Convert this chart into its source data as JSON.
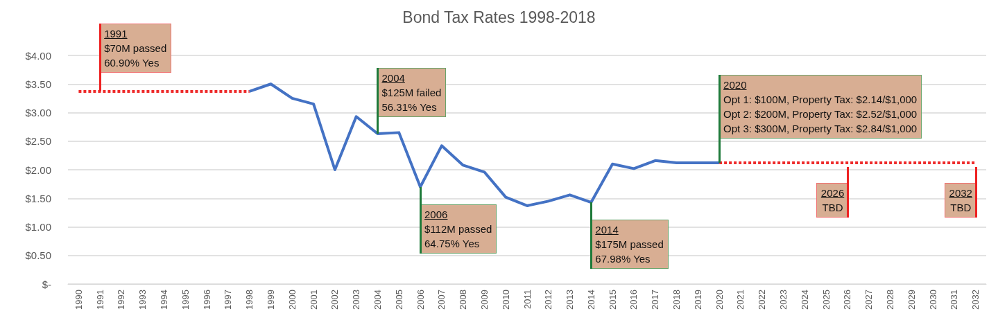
{
  "chart_data": {
    "type": "line",
    "title": "Bond Tax Rates 1998-2018",
    "categories": [
      "1990",
      "1991",
      "1992",
      "1993",
      "1994",
      "1995",
      "1996",
      "1997",
      "1998",
      "1999",
      "2000",
      "2001",
      "2002",
      "2003",
      "2004",
      "2005",
      "2006",
      "2007",
      "2008",
      "2009",
      "2010",
      "2011",
      "2012",
      "2013",
      "2014",
      "2015",
      "2016",
      "2017",
      "2018",
      "2019",
      "2020",
      "2021",
      "2022",
      "2023",
      "2024",
      "2025",
      "2026",
      "2027",
      "2028",
      "2029",
      "2030",
      "2031",
      "2032"
    ],
    "series": [
      {
        "color": "#ee2a2a",
        "line_style": "dashed",
        "values": [
          3.37,
          3.37,
          3.37,
          3.37,
          3.37,
          3.37,
          3.37,
          3.37,
          3.37,
          null,
          null,
          null,
          null,
          null,
          null,
          null,
          null,
          null,
          null,
          null,
          null,
          null,
          null,
          null,
          null,
          null,
          null,
          null,
          null,
          null,
          2.12,
          2.12,
          2.12,
          2.12,
          2.12,
          2.12,
          2.12,
          2.12,
          2.12,
          2.12,
          2.12,
          2.12,
          2.12
        ]
      },
      {
        "color": "#4472c4",
        "line_style": "solid",
        "values": [
          null,
          null,
          null,
          null,
          null,
          null,
          null,
          null,
          3.37,
          3.5,
          3.25,
          3.15,
          2.0,
          2.93,
          2.63,
          2.65,
          1.7,
          2.42,
          2.08,
          1.96,
          1.52,
          1.37,
          1.45,
          1.56,
          1.43,
          2.1,
          2.02,
          2.16,
          2.12,
          2.12,
          2.12,
          null,
          null,
          null,
          null,
          null,
          null,
          null,
          null,
          null,
          null,
          null,
          null
        ]
      }
    ],
    "ylim": [
      0,
      4
    ],
    "yticks": [
      {
        "value": 0,
        "label": "$-"
      },
      {
        "value": 0.5,
        "label": "$0.50"
      },
      {
        "value": 1,
        "label": "$1.00"
      },
      {
        "value": 1.5,
        "label": "$1.50"
      },
      {
        "value": 2,
        "label": "$2.00"
      },
      {
        "value": 2.5,
        "label": "$2.50"
      },
      {
        "value": 3,
        "label": "$3.00"
      },
      {
        "value": 3.5,
        "label": "$3.50"
      },
      {
        "value": 4,
        "label": "$4.00"
      }
    ],
    "grid": "y",
    "marker": "none",
    "annotations": [
      {
        "text": "1991\n$70M passed\n60.90% Yes",
        "x": "1991",
        "y": 3.37
      },
      {
        "text": "2004\n$125M failed\n56.31% Yes",
        "x": "2004",
        "y": 2.63
      },
      {
        "text": "2006\n$112M passed\n64.75% Yes",
        "x": "2006",
        "y": 1.7
      },
      {
        "text": "2014\n$175M passed\n67.98% Yes",
        "x": "2014",
        "y": 1.43
      },
      {
        "text": "2020\nOpt 1: $100M, Property Tax: $2.14/$1,000\nOpt 2: $200M, Property Tax: $2.52/$1,000\nOpt 3: $300M, Property Tax: $2.84/$1,000",
        "x": "2020",
        "y": 2.12
      },
      {
        "text": "2026\nTBD",
        "x": "2026",
        "y": 2.12
      },
      {
        "text": "2032\nTBD",
        "x": "2032",
        "y": 2.12
      }
    ]
  }
}
